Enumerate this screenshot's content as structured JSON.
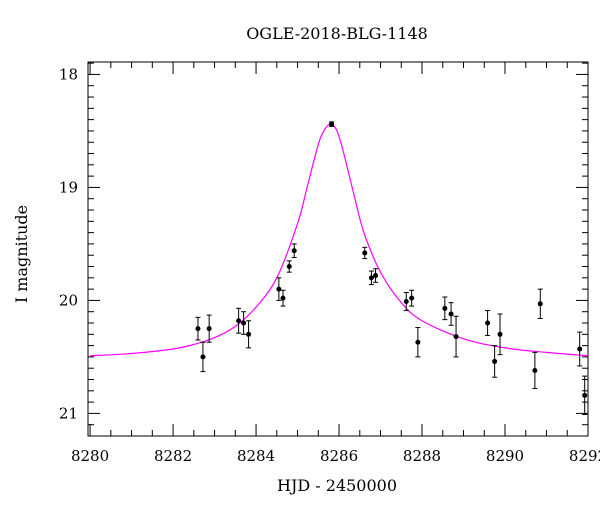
{
  "colors": {
    "model_curve": "#ff00ff",
    "data_points": "#000000",
    "axes": "#000000",
    "background": "#ffffff"
  },
  "chart_data": {
    "type": "scatter",
    "title": "OGLE-2018-BLG-1148",
    "xlabel": "HJD - 2450000",
    "ylabel": "I magnitude",
    "xlim": [
      8279.95,
      8292.0
    ],
    "ylim": [
      21.2,
      17.89
    ],
    "y_inverted": true,
    "grid": false,
    "x_major_ticks": [
      8280,
      8282,
      8284,
      8286,
      8288,
      8290,
      8292
    ],
    "x_tick_labels": [
      "8280",
      "8282",
      "8284",
      "8286",
      "8288",
      "8290",
      "8292"
    ],
    "x_minor_step": 0.5,
    "y_major_ticks": [
      18,
      19,
      20,
      21
    ],
    "y_tick_labels": [
      "18",
      "19",
      "20",
      "21"
    ],
    "y_minor_step": 0.1,
    "series": [
      {
        "kind": "points_with_errorbars",
        "points": [
          {
            "x": 8282.6,
            "y": 20.25,
            "err": 0.1
          },
          {
            "x": 8282.72,
            "y": 20.5,
            "err": 0.13
          },
          {
            "x": 8282.87,
            "y": 20.25,
            "err": 0.12
          },
          {
            "x": 8283.58,
            "y": 20.18,
            "err": 0.11
          },
          {
            "x": 8283.7,
            "y": 20.2,
            "err": 0.1
          },
          {
            "x": 8283.82,
            "y": 20.3,
            "err": 0.12
          },
          {
            "x": 8284.55,
            "y": 19.9,
            "err": 0.1
          },
          {
            "x": 8284.65,
            "y": 19.98,
            "err": 0.07
          },
          {
            "x": 8284.8,
            "y": 19.7,
            "err": 0.05
          },
          {
            "x": 8284.92,
            "y": 19.56,
            "err": 0.06
          },
          {
            "x": 8285.82,
            "y": 18.44,
            "err": 0.02
          },
          {
            "x": 8286.62,
            "y": 19.58,
            "err": 0.05
          },
          {
            "x": 8286.78,
            "y": 19.8,
            "err": 0.06
          },
          {
            "x": 8286.88,
            "y": 19.78,
            "err": 0.06
          },
          {
            "x": 8287.62,
            "y": 20.01,
            "err": 0.08
          },
          {
            "x": 8287.75,
            "y": 19.98,
            "err": 0.07
          },
          {
            "x": 8287.9,
            "y": 20.37,
            "err": 0.13
          },
          {
            "x": 8288.55,
            "y": 20.07,
            "err": 0.1
          },
          {
            "x": 8288.7,
            "y": 20.12,
            "err": 0.1
          },
          {
            "x": 8288.82,
            "y": 20.32,
            "err": 0.18
          },
          {
            "x": 8289.58,
            "y": 20.2,
            "err": 0.11
          },
          {
            "x": 8289.75,
            "y": 20.54,
            "err": 0.14
          },
          {
            "x": 8289.88,
            "y": 20.3,
            "err": 0.18
          },
          {
            "x": 8290.72,
            "y": 20.62,
            "err": 0.16
          },
          {
            "x": 8290.85,
            "y": 20.03,
            "err": 0.13
          },
          {
            "x": 8291.8,
            "y": 20.43,
            "err": 0.15
          },
          {
            "x": 8291.92,
            "y": 20.84,
            "err": 0.17
          }
        ]
      },
      {
        "kind": "model_curve",
        "x": [
          8280.0,
          8281.0,
          8282.0,
          8282.5,
          8283.0,
          8283.5,
          8284.0,
          8284.5,
          8285.0,
          8285.25,
          8285.5,
          8285.65,
          8285.8,
          8285.95,
          8286.1,
          8286.35,
          8286.6,
          8287.0,
          8287.5,
          8288.0,
          8289.0,
          8290.0,
          8291.0,
          8292.0
        ],
        "y": [
          20.49,
          20.47,
          20.43,
          20.39,
          20.33,
          20.23,
          20.06,
          19.8,
          19.32,
          18.97,
          18.62,
          18.49,
          18.44,
          18.5,
          18.68,
          19.05,
          19.4,
          19.75,
          20.02,
          20.18,
          20.34,
          20.42,
          20.46,
          20.49
        ]
      }
    ]
  }
}
